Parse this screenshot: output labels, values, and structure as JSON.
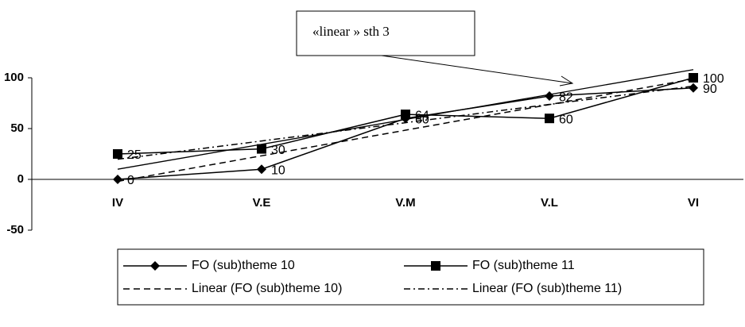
{
  "chart_data": {
    "type": "line",
    "categories": [
      "IV",
      "V.E",
      "V.M",
      "V.L",
      "VI"
    ],
    "series": [
      {
        "name": "FO (sub)theme 10",
        "color": "#000000",
        "marker": "diamond",
        "dash": "solid",
        "values": [
          0,
          10,
          60,
          82,
          90
        ]
      },
      {
        "name": "FO (sub)theme 11",
        "color": "#000000",
        "marker": "square",
        "dash": "solid",
        "values": [
          25,
          30,
          64,
          60,
          100
        ]
      },
      {
        "name": "Linear (FO (sub)theme 10)",
        "color": "#000000",
        "marker": "none",
        "dash": "dashed",
        "values": [
          -2,
          23.2,
          48.4,
          73.6,
          98.8
        ]
      },
      {
        "name": "Linear (FO (sub)theme 11)",
        "color": "#000000",
        "marker": "none",
        "dash": "dashdot",
        "values": [
          19.8,
          37.8,
          55.8,
          73.8,
          91.8
        ]
      }
    ],
    "data_labels": [
      0,
      1
    ],
    "annotation": {
      "text": "«linear » sth 3",
      "line": [
        10,
        108
      ]
    },
    "ylim": [
      -50,
      100
    ],
    "yticks": [
      -50,
      0,
      50,
      100
    ],
    "grid": false,
    "legend": "bottom"
  }
}
